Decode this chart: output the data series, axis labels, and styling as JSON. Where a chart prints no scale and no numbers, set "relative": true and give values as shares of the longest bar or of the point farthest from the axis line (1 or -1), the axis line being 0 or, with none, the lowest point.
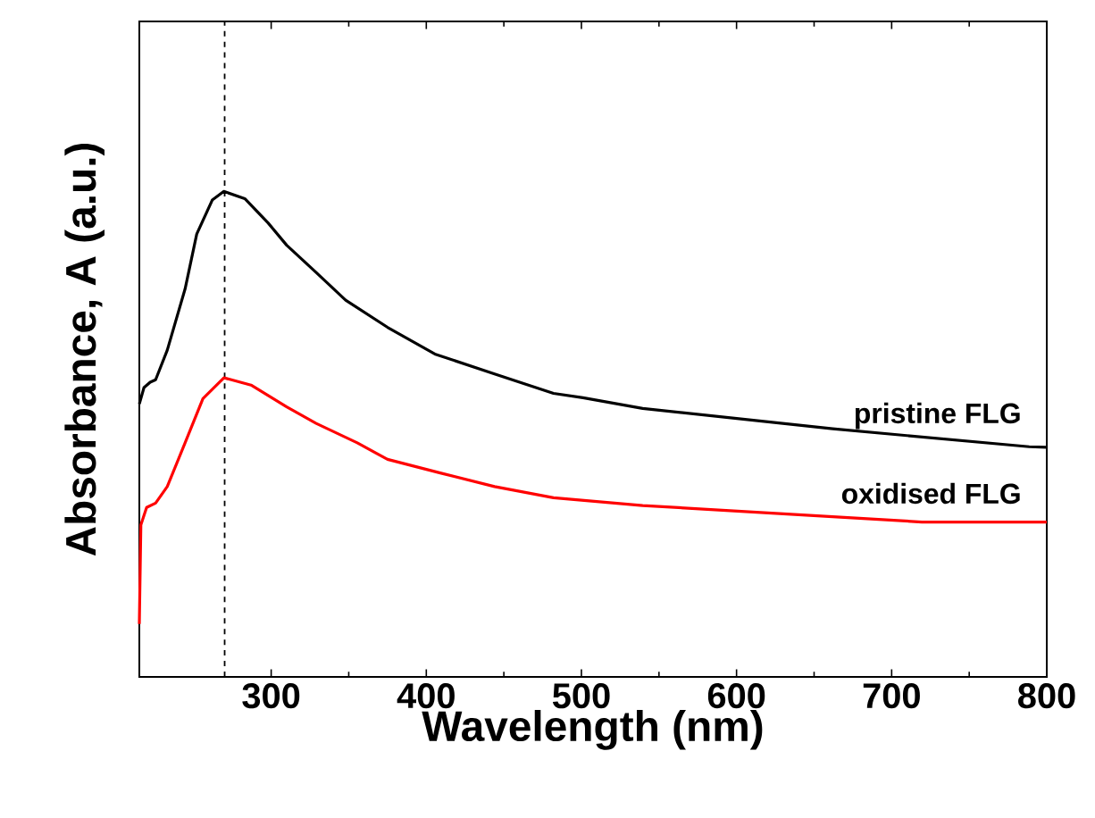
{
  "chart_data": {
    "type": "line",
    "relative": true,
    "xlabel": "Wavelength (nm)",
    "ylabel": "Absorbance, A (a.u.)",
    "xlim": [
      215,
      800
    ],
    "xticks": [
      300,
      400,
      500,
      600,
      700,
      800
    ],
    "legend": false,
    "grid": false,
    "marker": "none",
    "line_style": "solid",
    "ref_lines": [
      {
        "axis": "x",
        "value": 270,
        "line_style": "dashed",
        "color": "#000000"
      }
    ],
    "series": [
      {
        "name": "pristine FLG",
        "color": "#000000",
        "x": [
          215,
          218,
          222,
          225.5,
          233,
          244.5,
          252,
          262,
          269.5,
          283,
          298,
          310,
          329,
          348,
          375,
          405.5,
          444,
          482,
          501,
          539.5,
          662,
          788.7,
          800
        ],
        "values": [
          0.562,
          0.596,
          0.607,
          0.612,
          0.673,
          0.799,
          0.912,
          0.982,
          1.0,
          0.985,
          0.935,
          0.889,
          0.833,
          0.776,
          0.72,
          0.665,
          0.624,
          0.584,
          0.575,
          0.553,
          0.511,
          0.474,
          0.473
        ]
      },
      {
        "name": "oxidised FLG",
        "color": "#ff0000",
        "x": [
          215,
          216,
          219.7,
          225.5,
          233,
          244.5,
          256,
          269.5,
          287,
          310,
          329,
          355.5,
          375,
          409,
          444,
          482,
          539.5,
          662,
          719.5,
          800
        ],
        "values": [
          0.109,
          0.313,
          0.349,
          0.358,
          0.392,
          0.482,
          0.573,
          0.616,
          0.601,
          0.556,
          0.522,
          0.482,
          0.448,
          0.42,
          0.392,
          0.369,
          0.353,
          0.33,
          0.319,
          0.319
        ]
      }
    ]
  }
}
